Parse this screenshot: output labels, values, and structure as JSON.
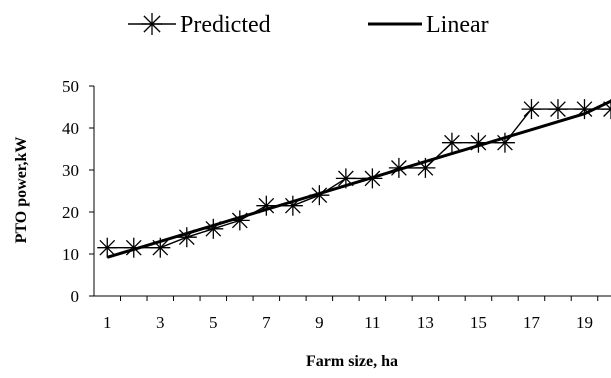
{
  "chart_data": {
    "type": "line",
    "title": "",
    "xlabel": "Farm size, ha",
    "ylabel": "PTO power,kW",
    "x": [
      1,
      2,
      3,
      4,
      5,
      6,
      7,
      8,
      9,
      10,
      11,
      12,
      13,
      14,
      15,
      16,
      17,
      18,
      19,
      20
    ],
    "x_tick_labels": [
      "1",
      "3",
      "5",
      "7",
      "9",
      "11",
      "13",
      "15",
      "17",
      "19"
    ],
    "y_tick_labels": [
      "0",
      "10",
      "20",
      "30",
      "40",
      "50"
    ],
    "xlim": [
      0.5,
      20
    ],
    "ylim": [
      0,
      50
    ],
    "grid": false,
    "legend_position": "top",
    "series": [
      {
        "name": "Predicted",
        "marker": "asterisk",
        "color": "#000000",
        "values": [
          11.5,
          11.5,
          11.5,
          14,
          16,
          18,
          21.5,
          21.5,
          24,
          28,
          28,
          30.5,
          30.5,
          36.5,
          36.5,
          36.5,
          44.5,
          44.5,
          44.5,
          44.5
        ]
      },
      {
        "name": "Linear",
        "marker": "none",
        "color": "#000000",
        "values": [
          9.2,
          11.1,
          13.0,
          14.9,
          16.8,
          18.7,
          20.6,
          22.5,
          24.4,
          26.3,
          28.2,
          30.1,
          32.0,
          33.9,
          35.8,
          37.7,
          39.6,
          41.5,
          43.4,
          46.4
        ]
      }
    ]
  }
}
